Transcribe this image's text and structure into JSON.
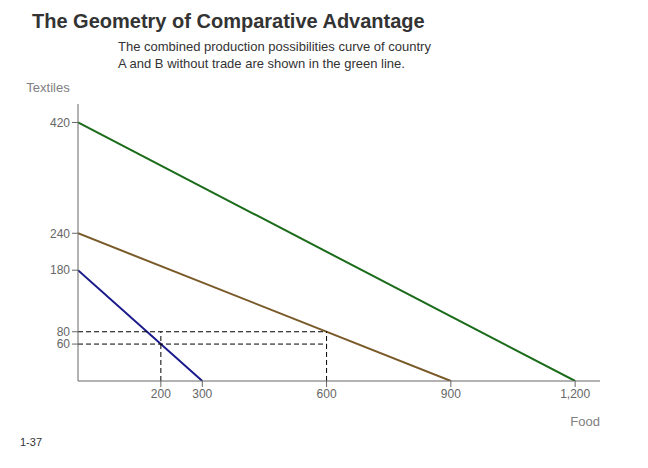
{
  "chart_data": {
    "type": "line",
    "title": "The Geometry of Comparative Advantage",
    "xlabel": "Food",
    "ylabel": "Textiles",
    "annotations": [
      "The combined production possibilities curve of country\nA and B without trade are shown in the green line.",
      "1-37"
    ],
    "xlim": [
      0,
      1260
    ],
    "ylim": [
      0,
      450
    ],
    "xticks": [
      200,
      300,
      600,
      900,
      {
        "value": 1200,
        "label": "1,200"
      }
    ],
    "yticks": [
      60,
      80,
      180,
      240,
      420
    ],
    "series": [
      {
        "color": "#1a6b1a",
        "x": [
          0,
          1200
        ],
        "values": [
          420,
          0
        ]
      },
      {
        "color": "#7b5a2a",
        "x": [
          0,
          900
        ],
        "values": [
          240,
          0
        ]
      },
      {
        "color": "#1a1a8c",
        "x": [
          0,
          300
        ],
        "values": [
          180,
          0
        ]
      },
      {
        "color": "black",
        "line_style": "dashed",
        "x": [
          0,
          600
        ],
        "values": [
          80,
          80
        ]
      },
      {
        "color": "black",
        "line_style": "dashed",
        "x": [
          0,
          600
        ],
        "values": [
          60,
          60
        ]
      },
      {
        "color": "black",
        "line_style": "dashed",
        "x": [
          200,
          200
        ],
        "values": [
          0,
          80
        ]
      },
      {
        "color": "black",
        "line_style": "dashed",
        "x": [
          600,
          600
        ],
        "values": [
          0,
          80
        ]
      }
    ]
  }
}
